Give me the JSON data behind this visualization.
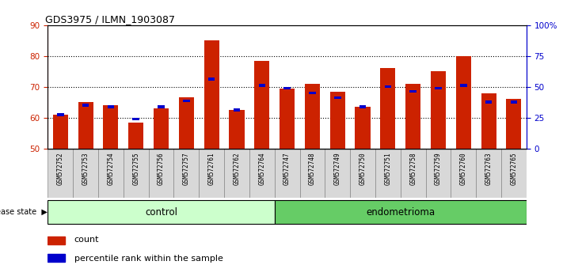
{
  "title": "GDS3975 / ILMN_1903087",
  "samples": [
    "GSM572752",
    "GSM572753",
    "GSM572754",
    "GSM572755",
    "GSM572756",
    "GSM572757",
    "GSM572761",
    "GSM572762",
    "GSM572764",
    "GSM572747",
    "GSM572748",
    "GSM572749",
    "GSM572750",
    "GSM572751",
    "GSM572758",
    "GSM572759",
    "GSM572760",
    "GSM572763",
    "GSM572765"
  ],
  "count_values": [
    61,
    65,
    64,
    58.5,
    63,
    66.5,
    85,
    62.5,
    78.5,
    69.5,
    71,
    68.5,
    63.5,
    76,
    71,
    75,
    80,
    68,
    66
  ],
  "percentile_values": [
    61,
    64,
    63.5,
    59.5,
    63.5,
    65.5,
    72.5,
    62.5,
    70.5,
    69.5,
    68,
    66.5,
    63.5,
    70,
    68.5,
    69.5,
    70.5,
    65,
    65
  ],
  "control_count": 9,
  "endometrioma_count": 10,
  "ylim_left": [
    50,
    90
  ],
  "ylim_right": [
    0,
    100
  ],
  "yticks_left": [
    50,
    60,
    70,
    80,
    90
  ],
  "yticks_right": [
    0,
    25,
    50,
    75,
    100
  ],
  "ytick_labels_right": [
    "0",
    "25",
    "50",
    "75",
    "100%"
  ],
  "bar_color": "#cc2200",
  "percentile_color": "#0000cc",
  "bar_bottom": 50,
  "bar_width": 0.6,
  "control_label": "control",
  "endometrioma_label": "endometrioma",
  "disease_state_label": "disease state",
  "legend_count": "count",
  "legend_percentile": "percentile rank within the sample",
  "control_bg": "#ccffcc",
  "endo_bg": "#66cc66",
  "axis_color_left": "#cc2200",
  "axis_color_right": "#0000cc",
  "tick_bg_color": "#d8d8d8",
  "white": "#ffffff"
}
